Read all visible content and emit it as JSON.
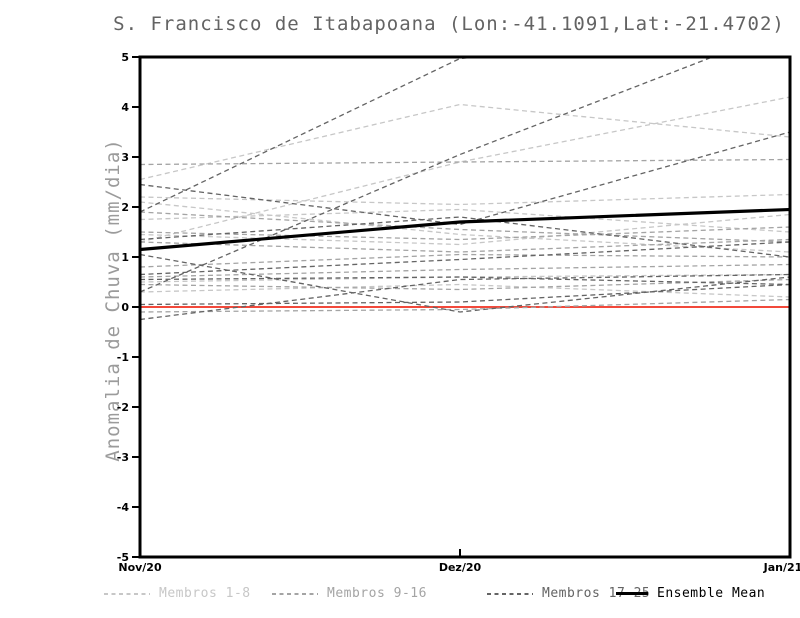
{
  "chart_data": {
    "type": "line",
    "title": "S. Francisco de Itabapoana (Lon:-41.1091,Lat:-21.4702)",
    "ylabel": "Anomalia de Chuva (mm/dia)",
    "xlabel": "",
    "x_categories": [
      "Nov/20",
      "Dez/20",
      "Jan/21"
    ],
    "ylim": [
      -5,
      5
    ],
    "y_ticks": [
      5,
      4,
      3,
      2,
      1,
      0,
      -1,
      -2,
      -3,
      -4,
      -5
    ],
    "grid": false,
    "legend_position": "bottom",
    "zero_line": {
      "value": 0,
      "color": "#f2493b"
    },
    "axis_color": "#000000",
    "groups": [
      {
        "name": "Membros 1-8",
        "color": "#c7c7c7",
        "style": "dashed"
      },
      {
        "name": "Membros 9-16",
        "color": "#a4a4a4",
        "style": "dashed"
      },
      {
        "name": "Membros 17-25",
        "color": "#646464",
        "style": "dashed"
      },
      {
        "name": "Ensemble Mean",
        "color": "#000000",
        "style": "solid"
      }
    ],
    "series": [
      {
        "member": 1,
        "group": 0,
        "values": [
          2.55,
          4.05,
          3.4
        ]
      },
      {
        "member": 2,
        "group": 0,
        "values": [
          1.3,
          2.9,
          4.2
        ]
      },
      {
        "member": 3,
        "group": 0,
        "values": [
          2.2,
          2.05,
          2.25
        ]
      },
      {
        "member": 4,
        "group": 0,
        "values": [
          2.1,
          1.45,
          1.1
        ]
      },
      {
        "member": 5,
        "group": 0,
        "values": [
          1.75,
          1.95,
          1.5
        ]
      },
      {
        "member": 6,
        "group": 0,
        "values": [
          1.45,
          1.25,
          1.85
        ]
      },
      {
        "member": 7,
        "group": 0,
        "values": [
          0.5,
          0.6,
          0.65
        ]
      },
      {
        "member": 8,
        "group": 0,
        "values": [
          0.3,
          0.45,
          0.2
        ]
      },
      {
        "member": 9,
        "group": 1,
        "values": [
          2.85,
          2.9,
          2.95
        ]
      },
      {
        "member": 10,
        "group": 1,
        "values": [
          1.9,
          1.55,
          1.3
        ]
      },
      {
        "member": 11,
        "group": 1,
        "values": [
          1.5,
          1.35,
          1.6
        ]
      },
      {
        "member": 12,
        "group": 1,
        "values": [
          1.3,
          1.1,
          1.35
        ]
      },
      {
        "member": 13,
        "group": 1,
        "values": [
          0.8,
          1.05,
          1.0
        ]
      },
      {
        "member": 14,
        "group": 1,
        "values": [
          0.6,
          0.75,
          0.85
        ]
      },
      {
        "member": 15,
        "group": 1,
        "values": [
          0.45,
          0.35,
          0.55
        ]
      },
      {
        "member": 16,
        "group": 1,
        "values": [
          -0.1,
          -0.05,
          0.15
        ]
      },
      {
        "member": 17,
        "group": 2,
        "values": [
          1.9,
          4.97,
          5.6
        ]
      },
      {
        "member": 18,
        "group": 2,
        "values": [
          0.3,
          3.05,
          5.6
        ]
      },
      {
        "member": 19,
        "group": 2,
        "values": [
          1.05,
          -0.1,
          0.6
        ]
      },
      {
        "member": 20,
        "group": 2,
        "values": [
          2.45,
          1.65,
          3.5
        ]
      },
      {
        "member": 21,
        "group": 2,
        "values": [
          1.35,
          1.8,
          1.0
        ]
      },
      {
        "member": 22,
        "group": 2,
        "values": [
          0.65,
          0.95,
          1.3
        ]
      },
      {
        "member": 23,
        "group": 2,
        "values": [
          0.55,
          0.6,
          0.45
        ]
      },
      {
        "member": 24,
        "group": 2,
        "values": [
          -0.25,
          0.55,
          0.65
        ]
      },
      {
        "member": 25,
        "group": 2,
        "values": [
          0.05,
          0.1,
          0.45
        ]
      },
      {
        "member": "mean",
        "group": 3,
        "values": [
          1.15,
          1.7,
          1.95
        ]
      }
    ]
  }
}
